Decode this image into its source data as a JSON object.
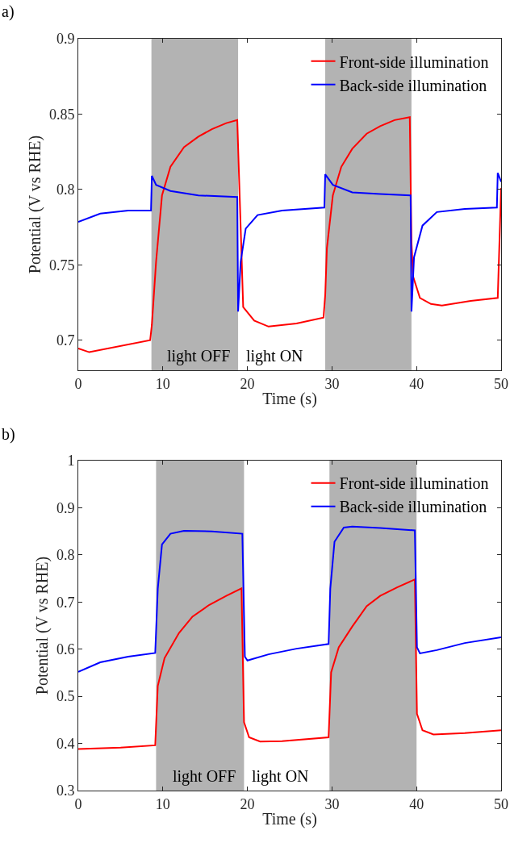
{
  "chart_data": [
    {
      "type": "line",
      "title": "a)",
      "xlabel": "Time (s)",
      "ylabel": "Potential (V vs RHE)",
      "xlim": [
        0,
        50
      ],
      "xticks": [
        0,
        10,
        20,
        30,
        40,
        50
      ],
      "ylim": [
        0.68,
        0.9
      ],
      "yticks": [
        0.7,
        0.75,
        0.8,
        0.85,
        0.9
      ],
      "grid": false,
      "legend": "top right",
      "line_style": "solid",
      "marker": "none",
      "series": [
        {
          "name": "Front-side illumination",
          "color": "#ff0000",
          "x": [
            0,
            1.3,
            8.5,
            8.7,
            9.2,
            9.9,
            10.9,
            12.5,
            14.2,
            15.8,
            17.5,
            18.8,
            19.5,
            20.8,
            22.5,
            25.8,
            29.0,
            29.2,
            29.4,
            30.1,
            31.1,
            32.4,
            34.1,
            35.7,
            37.4,
            39.2,
            39.4,
            39.6,
            40.4,
            41.7,
            43.0,
            46.4,
            49.6,
            50
          ],
          "values": [
            0.6945,
            0.692,
            0.7,
            0.71,
            0.752,
            0.796,
            0.815,
            0.828,
            0.835,
            0.84,
            0.844,
            0.846,
            0.722,
            0.713,
            0.709,
            0.711,
            0.715,
            0.73,
            0.761,
            0.796,
            0.815,
            0.827,
            0.837,
            0.842,
            0.846,
            0.848,
            0.765,
            0.742,
            0.728,
            0.724,
            0.723,
            0.726,
            0.728,
            0.801
          ]
        },
        {
          "name": "Back-side illumination",
          "color": "#0000ff",
          "x": [
            0,
            2.6,
            5.9,
            8.6,
            8.7,
            9.2,
            10.9,
            14.2,
            18.8,
            18.9,
            19.2,
            19.8,
            21.2,
            24.1,
            29.1,
            29.2,
            30.1,
            32.4,
            35.7,
            39.3,
            39.4,
            39.7,
            40.7,
            42.4,
            45.7,
            49.5,
            49.6,
            50
          ],
          "values": [
            0.7785,
            0.784,
            0.786,
            0.786,
            0.809,
            0.803,
            0.799,
            0.796,
            0.795,
            0.719,
            0.752,
            0.774,
            0.783,
            0.786,
            0.788,
            0.81,
            0.803,
            0.798,
            0.797,
            0.796,
            0.719,
            0.755,
            0.776,
            0.785,
            0.787,
            0.788,
            0.811,
            0.805
          ]
        }
      ],
      "bands": [
        {
          "axis": "x",
          "from": 8.65,
          "to": 18.9,
          "color": "#b3b3b3"
        },
        {
          "axis": "x",
          "from": 29.2,
          "to": 39.4,
          "color": "#b3b3b3"
        }
      ],
      "annotations": [
        "light OFF",
        "light ON"
      ]
    },
    {
      "type": "line",
      "title": "b)",
      "xlabel": "Time (s)",
      "ylabel": "Potential (V vs RHE)",
      "xlim": [
        0,
        50
      ],
      "xticks": [
        0,
        10,
        20,
        30,
        40,
        50
      ],
      "ylim": [
        0.3,
        1
      ],
      "yticks": [
        0.3,
        0.4,
        0.5,
        0.6,
        0.7,
        0.8,
        0.9,
        1
      ],
      "grid": false,
      "legend": "top right",
      "line_style": "solid",
      "marker": "none",
      "series": [
        {
          "name": "Front-side illumination",
          "color": "#ff0000",
          "x": [
            0,
            5,
            9.1,
            9.4,
            10.2,
            11.9,
            13.5,
            15.5,
            17.5,
            19.3,
            19.6,
            20.2,
            21.5,
            24.1,
            29.6,
            29.9,
            30.8,
            32.4,
            34.1,
            35.7,
            37.7,
            39.8,
            40.05,
            40.7,
            42.0,
            45.7,
            50
          ],
          "values": [
            0.388,
            0.391,
            0.396,
            0.522,
            0.581,
            0.634,
            0.669,
            0.694,
            0.713,
            0.729,
            0.445,
            0.413,
            0.404,
            0.405,
            0.413,
            0.551,
            0.604,
            0.648,
            0.691,
            0.713,
            0.731,
            0.748,
            0.463,
            0.428,
            0.419,
            0.422,
            0.428
          ]
        },
        {
          "name": "Back-side illumination",
          "color": "#0000ff",
          "x": [
            0,
            2.6,
            5.9,
            9.1,
            9.4,
            9.9,
            10.9,
            12.5,
            15.8,
            19.4,
            19.7,
            20.0,
            22.5,
            25.8,
            29.6,
            29.8,
            30.3,
            31.4,
            32.4,
            35.7,
            39.8,
            40.05,
            40.4,
            42.4,
            45.7,
            50
          ],
          "values": [
            0.552,
            0.572,
            0.584,
            0.592,
            0.728,
            0.822,
            0.845,
            0.851,
            0.85,
            0.845,
            0.584,
            0.576,
            0.589,
            0.601,
            0.611,
            0.728,
            0.828,
            0.858,
            0.86,
            0.857,
            0.852,
            0.604,
            0.591,
            0.598,
            0.613,
            0.625
          ]
        }
      ],
      "bands": [
        {
          "axis": "x",
          "from": 9.2,
          "to": 19.6,
          "color": "#b3b3b3"
        },
        {
          "axis": "x",
          "from": 29.7,
          "to": 40.0,
          "color": "#b3b3b3"
        }
      ],
      "annotations": [
        "light OFF",
        "light ON"
      ]
    }
  ]
}
